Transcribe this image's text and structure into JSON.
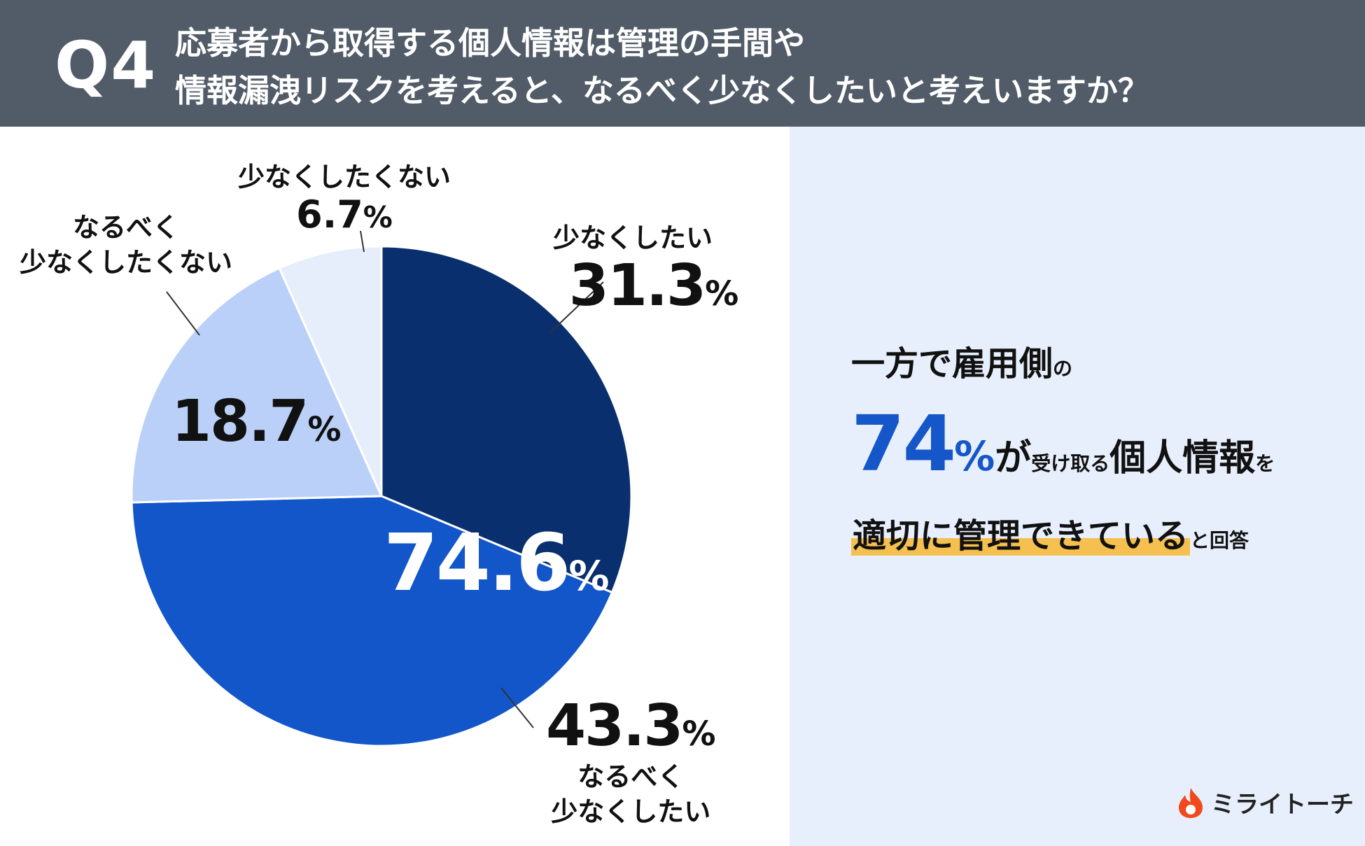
{
  "header": {
    "q_label": "Q4",
    "question_line1": "応募者から取得する個人情報は管理の手間や",
    "question_line2": "情報漏洩リスクを考えると、なるべく少なくしたいと考えいますか？"
  },
  "chart_data": {
    "type": "pie",
    "slices": [
      {
        "label": "少なくしたい",
        "value": 31.3,
        "color": "#0a2f6e"
      },
      {
        "label": "なるべく少なくしたい",
        "value": 43.3,
        "color": "#1256c9"
      },
      {
        "label": "なるべく少なくしたくない",
        "value": 18.7,
        "color": "#bad0f8"
      },
      {
        "label": "少なくしたくない",
        "value": 6.7,
        "color": "#e6eefc"
      }
    ],
    "combined": {
      "value": "74.6",
      "unit": "%"
    }
  },
  "labels": {
    "s1": {
      "name": "少なくしたい",
      "num": "31.3",
      "unit": "%"
    },
    "s2": {
      "name_line1": "なるべく",
      "name_line2": "少なくしたい",
      "num": "43.3",
      "unit": "%"
    },
    "s3": {
      "name_line1": "なるべく",
      "name_line2": "少なくしたくない",
      "num": "18.7",
      "unit": "%"
    },
    "s4": {
      "name": "少なくしたくない",
      "num": "6.7",
      "unit": "%"
    }
  },
  "summary": {
    "line1_main": "一方で雇用側",
    "line1_small": "の",
    "num": "74",
    "pct": "%",
    "ga": "が",
    "receive": "受け取る",
    "info": "個人情報",
    "wo": "を",
    "highlight": "適切に管理できている",
    "tail": "と回答"
  },
  "logo": {
    "text": "ミライトーチ"
  }
}
